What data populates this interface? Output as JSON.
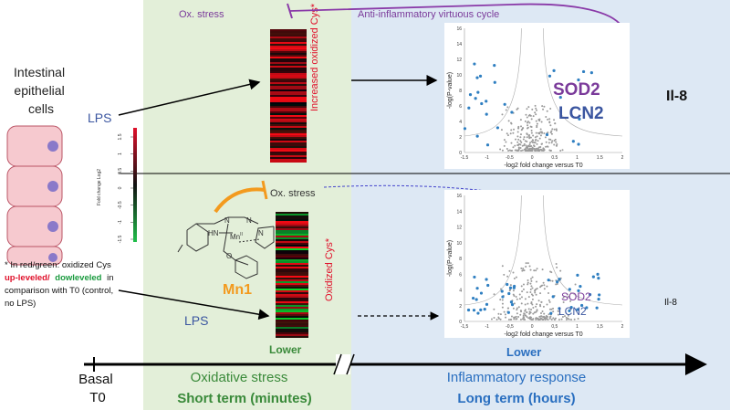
{
  "cells": {
    "label_lines": [
      "Intestinal",
      "epithelial",
      "cells"
    ]
  },
  "note": {
    "line1": "* In red/green: oxidized Cys",
    "up": "up-leveled/",
    "down": "dowleveled",
    "in": "in",
    "line3": "comparison with T0 (control,",
    "line4": "no LPS)"
  },
  "colorbar": {
    "title": "Fold change Log2",
    "ticks": [
      "1.5",
      "1",
      "0.5",
      "0",
      "-0.5",
      "-1",
      "-1.5"
    ]
  },
  "top": {
    "lps": "LPS",
    "heatmap_label": "Increased oxidized Cys*",
    "ox_stress": "Ox. stress",
    "cycle": "Anti-inflammatory virtuous cycle",
    "sod2": "SOD2",
    "lcn2": "LCN2",
    "il8": "Il-8",
    "volcano": {
      "y_label": "-log(P-value)",
      "x_label": "-log2 fold change versus T0",
      "yticks": [
        0,
        2,
        4,
        6,
        8,
        10,
        12,
        14,
        16
      ],
      "xticks": [
        -1.5,
        -1,
        -0.5,
        0,
        0.5,
        1,
        1.5,
        2
      ]
    }
  },
  "bottom": {
    "lps": "LPS",
    "heatmap_label": "Oxidized Cys*",
    "ox_stress": "Ox. stress",
    "mn1": "Mn1",
    "chem": [
      "HN",
      "N",
      "Mn",
      "II",
      "N",
      "N",
      "O"
    ],
    "sod2": "SOD2",
    "lcn2": "LCN2",
    "il8": "Il-8",
    "lower_left": "Lower",
    "lower_right": "Lower",
    "volcano": {
      "y_label": "-log(P-value)",
      "x_label": "-log2 fold change versus T0",
      "yticks": [
        0,
        2,
        4,
        6,
        8,
        10,
        12,
        14,
        16
      ],
      "xticks": [
        "-1,5",
        "-1",
        "-0,5",
        "0",
        "0,5",
        "1",
        "1,5",
        "2"
      ]
    }
  },
  "timeline": {
    "basal": [
      "Basal",
      "T0"
    ],
    "oxidative": "Oxidative stress",
    "short": "Short term (minutes)",
    "inflammatory": "Inflammatory response",
    "long": "Long term (hours)"
  }
}
